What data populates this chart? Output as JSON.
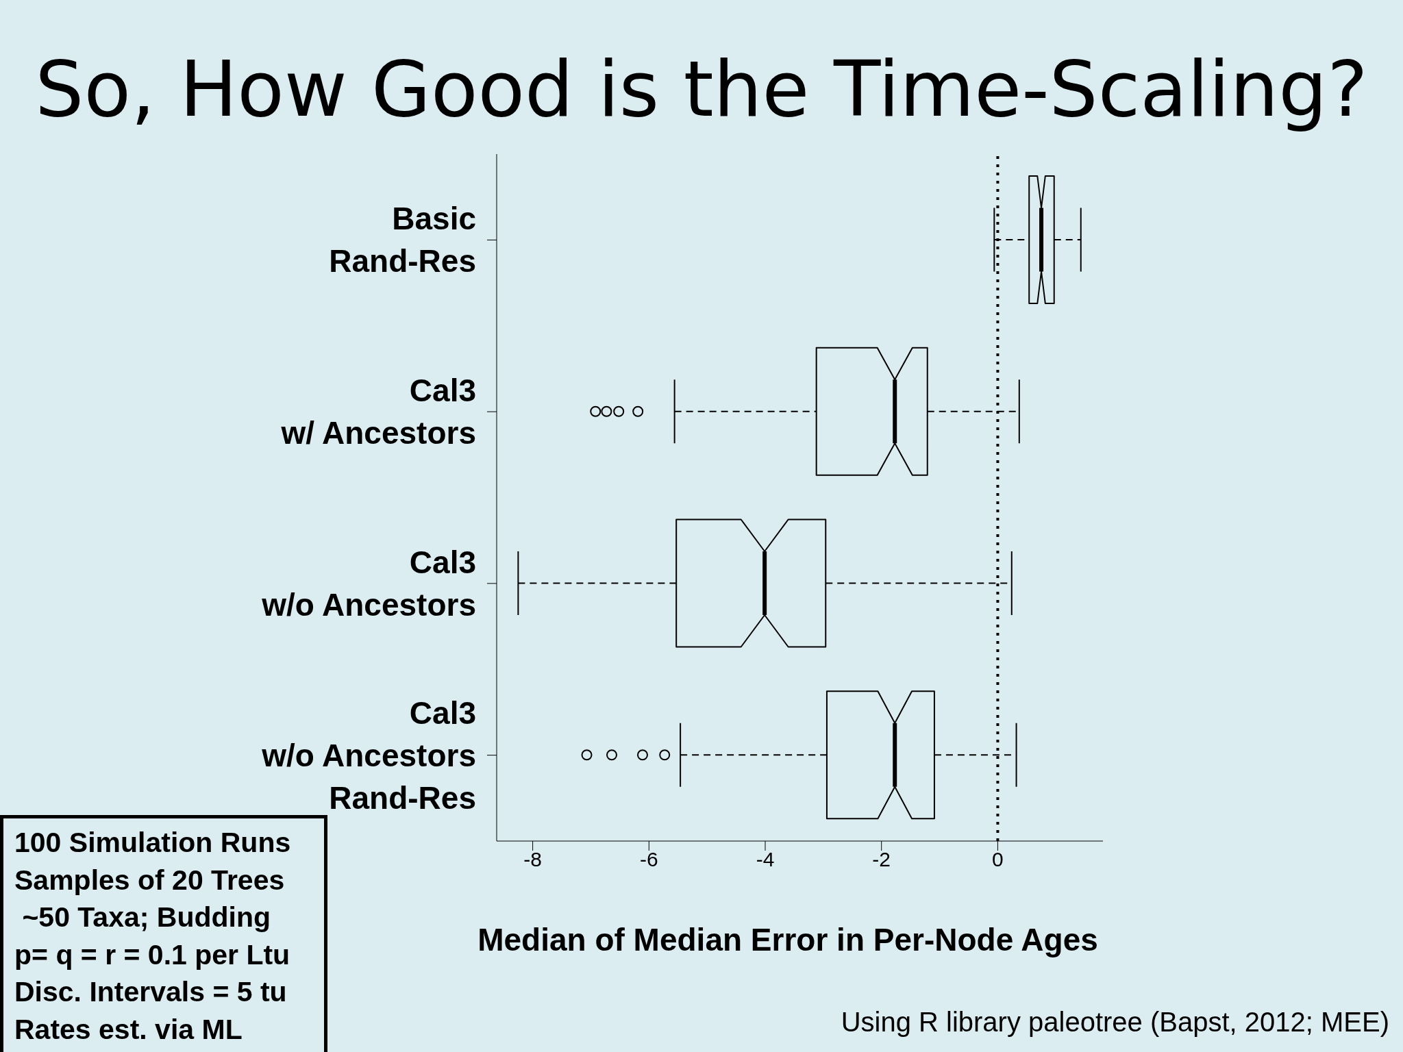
{
  "chart_data": {
    "type": "box",
    "orientation": "horizontal",
    "title": "So, How Good is the Time-Scaling?",
    "xlabel": "Median of Median Error in Per-Node Ages",
    "color": "#000000",
    "categories": [
      "Basic\nRand-Res",
      "Cal3\nw/ Ancestors",
      "Cal3\nw/o Ancestors",
      "Cal3\nw/o Ancestors\nRand-Res"
    ],
    "boxes": [
      {
        "low": -0.06,
        "q1": 0.54,
        "median": 0.75,
        "q3": 0.97,
        "high": 1.43
      },
      {
        "low": -5.56,
        "q1": -3.12,
        "median": -1.77,
        "q3": -1.21,
        "high": 0.37,
        "outliers": [
          -6.92,
          -6.73,
          -6.52,
          -6.19
        ]
      },
      {
        "low": -8.25,
        "q1": -5.53,
        "median": -4.01,
        "q3": -2.96,
        "high": 0.24
      },
      {
        "low": -5.46,
        "q1": -2.94,
        "median": -1.77,
        "q3": -1.09,
        "high": 0.32,
        "outliers": [
          -7.07,
          -6.64,
          -6.11,
          -5.73
        ]
      }
    ],
    "xlim": [
      -8.62,
      1.81
    ],
    "xticks": [
      -8,
      -6,
      -4,
      -2,
      0
    ],
    "ref_lines": [
      {
        "axis": "x",
        "value": 0,
        "line_style": "dotted",
        "color": "#000000"
      }
    ],
    "annotations": [
      "100 Simulation Runs\nSamples of 20 Trees\n ~50 Taxa; Budding\np= q = r = 0.1 per Ltu\nDisc. Intervals = 5 tu\nRates est. via ML",
      "Using R library paleotree (Bapst, 2012; MEE)"
    ]
  }
}
